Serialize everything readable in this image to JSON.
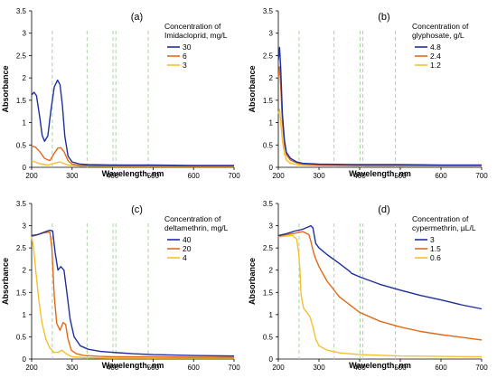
{
  "chart_data": [
    {
      "type": "line",
      "panel_label": "(a)",
      "xlabel": "Wavelength, nm",
      "ylabel": "Absorbance",
      "xlim": [
        200,
        700
      ],
      "ylim": [
        0,
        3.5
      ],
      "xticks": [
        200,
        300,
        400,
        500,
        600,
        700
      ],
      "yticks": [
        0,
        0.5,
        1,
        1.5,
        2,
        2.5,
        3,
        3.5
      ],
      "grid": false,
      "legend": {
        "title_lines": [
          "Concentration of",
          "Imidacloprid, mg/L"
        ],
        "placement": "top-right"
      },
      "reference_lines_x": [
        251,
        337,
        401,
        408,
        488
      ],
      "reference_line_color": "#a8d5a0",
      "series": [
        {
          "name": "30",
          "color": "#1f2f9e",
          "x": [
            200,
            206,
            212,
            220,
            226,
            232,
            240,
            248,
            256,
            264,
            270,
            276,
            282,
            290,
            300,
            320,
            340,
            400,
            500,
            600,
            700
          ],
          "y": [
            1.62,
            1.68,
            1.6,
            1.12,
            0.72,
            0.58,
            0.7,
            1.3,
            1.8,
            1.95,
            1.85,
            1.4,
            0.7,
            0.25,
            0.12,
            0.07,
            0.06,
            0.05,
            0.05,
            0.04,
            0.04
          ]
        },
        {
          "name": "6",
          "color": "#e06a1b",
          "x": [
            200,
            210,
            220,
            232,
            245,
            255,
            265,
            272,
            280,
            290,
            300,
            320,
            400,
            500,
            600,
            700
          ],
          "y": [
            0.48,
            0.45,
            0.35,
            0.2,
            0.15,
            0.3,
            0.43,
            0.44,
            0.35,
            0.15,
            0.07,
            0.04,
            0.03,
            0.03,
            0.03,
            0.03
          ]
        },
        {
          "name": "3",
          "color": "#f2c12e",
          "x": [
            200,
            220,
            240,
            260,
            270,
            290,
            320,
            400,
            500,
            600,
            700
          ],
          "y": [
            0.15,
            0.08,
            0.05,
            0.1,
            0.12,
            0.05,
            0.03,
            0.02,
            0.02,
            0.02,
            0.02
          ]
        }
      ]
    },
    {
      "type": "line",
      "panel_label": "(b)",
      "xlabel": "Wavelength, nm",
      "ylabel": "Absorbance",
      "xlim": [
        200,
        700
      ],
      "ylim": [
        0,
        3.5
      ],
      "xticks": [
        200,
        300,
        400,
        500,
        600,
        700
      ],
      "yticks": [
        0,
        0.5,
        1,
        1.5,
        2,
        2.5,
        3,
        3.5
      ],
      "grid": false,
      "legend": {
        "title_lines": [
          "Concentration of",
          "glyphosate, g/L"
        ],
        "placement": "top-right"
      },
      "reference_lines_x": [
        251,
        337,
        401,
        408,
        488
      ],
      "reference_line_color": "#a8d5a0",
      "series": [
        {
          "name": "4.8",
          "color": "#1f2f9e",
          "x": [
            200,
            203,
            206,
            210,
            215,
            220,
            230,
            245,
            260,
            300,
            400,
            500,
            600,
            700
          ],
          "y": [
            2.4,
            2.68,
            2.2,
            1.2,
            0.6,
            0.33,
            0.2,
            0.12,
            0.09,
            0.07,
            0.06,
            0.06,
            0.05,
            0.05
          ]
        },
        {
          "name": "2.4",
          "color": "#e06a1b",
          "x": [
            200,
            203,
            206,
            210,
            215,
            220,
            230,
            245,
            260,
            300,
            400,
            500,
            600,
            700
          ],
          "y": [
            2.0,
            2.25,
            1.8,
            1.0,
            0.5,
            0.28,
            0.16,
            0.1,
            0.07,
            0.05,
            0.04,
            0.04,
            0.04,
            0.04
          ]
        },
        {
          "name": "1.2",
          "color": "#f2c12e",
          "x": [
            200,
            203,
            206,
            210,
            215,
            220,
            230,
            245,
            260,
            300,
            400,
            500,
            600,
            700
          ],
          "y": [
            1.2,
            1.3,
            1.0,
            0.6,
            0.3,
            0.16,
            0.09,
            0.06,
            0.05,
            0.04,
            0.03,
            0.03,
            0.03,
            0.03
          ]
        }
      ]
    },
    {
      "type": "line",
      "panel_label": "(c)",
      "xlabel": "Wavelength, nm",
      "ylabel": "Absorbance",
      "xlim": [
        200,
        700
      ],
      "ylim": [
        0,
        3.5
      ],
      "xticks": [
        200,
        300,
        400,
        500,
        600,
        700
      ],
      "yticks": [
        0,
        0.5,
        1,
        1.5,
        2,
        2.5,
        3,
        3.5
      ],
      "grid": false,
      "legend": {
        "title_lines": [
          "Concentration of",
          "deltamethrin, mg/L"
        ],
        "placement": "top-right"
      },
      "reference_lines_x": [
        251,
        337,
        401,
        408,
        488
      ],
      "reference_line_color": "#a8d5a0",
      "series": [
        {
          "name": "40",
          "color": "#1f2f9e",
          "x": [
            200,
            215,
            230,
            245,
            252,
            258,
            265,
            272,
            280,
            287,
            295,
            305,
            320,
            340,
            370,
            400,
            450,
            500,
            600,
            700
          ],
          "y": [
            2.78,
            2.8,
            2.85,
            2.9,
            2.88,
            2.4,
            2.0,
            2.08,
            2.0,
            1.5,
            0.9,
            0.5,
            0.3,
            0.22,
            0.17,
            0.15,
            0.12,
            0.1,
            0.08,
            0.07
          ]
        },
        {
          "name": "20",
          "color": "#e06a1b",
          "x": [
            200,
            215,
            230,
            245,
            250,
            256,
            262,
            270,
            278,
            284,
            290,
            298,
            310,
            330,
            370,
            400,
            500,
            600,
            700
          ],
          "y": [
            2.76,
            2.8,
            2.84,
            2.86,
            2.5,
            1.4,
            0.8,
            0.65,
            0.82,
            0.78,
            0.45,
            0.2,
            0.12,
            0.08,
            0.06,
            0.05,
            0.05,
            0.04,
            0.04
          ]
        },
        {
          "name": "4",
          "color": "#f2c12e",
          "x": [
            200,
            205,
            210,
            218,
            226,
            235,
            245,
            255,
            265,
            275,
            285,
            300,
            330,
            400,
            500,
            600,
            700
          ],
          "y": [
            2.75,
            2.5,
            2.0,
            1.3,
            0.8,
            0.45,
            0.25,
            0.15,
            0.15,
            0.2,
            0.12,
            0.05,
            0.03,
            0.02,
            0.02,
            0.02,
            0.02
          ]
        }
      ]
    },
    {
      "type": "line",
      "panel_label": "(d)",
      "xlabel": "Wavelength, nm",
      "ylabel": "Absorbance",
      "xlim": [
        200,
        700
      ],
      "ylim": [
        0,
        3.5
      ],
      "xticks": [
        200,
        300,
        400,
        500,
        600,
        700
      ],
      "yticks": [
        0,
        0.5,
        1,
        1.5,
        2,
        2.5,
        3,
        3.5
      ],
      "grid": false,
      "legend": {
        "title_lines": [
          "Concentration of",
          "cypermethrin, µL/L"
        ],
        "placement": "top-right"
      },
      "reference_lines_x": [
        251,
        337,
        401,
        408,
        488
      ],
      "reference_line_color": "#a8d5a0",
      "series": [
        {
          "name": "3",
          "color": "#1f2f9e",
          "x": [
            200,
            220,
            240,
            260,
            275,
            280,
            285,
            292,
            300,
            320,
            350,
            376,
            380,
            400,
            450,
            500,
            550,
            600,
            650,
            700
          ],
          "y": [
            2.78,
            2.82,
            2.88,
            2.92,
            2.98,
            3.0,
            2.95,
            2.6,
            2.5,
            2.35,
            2.15,
            1.97,
            1.93,
            1.85,
            1.68,
            1.55,
            1.43,
            1.33,
            1.22,
            1.13
          ]
        },
        {
          "name": "1.5",
          "color": "#e06a1b",
          "x": [
            200,
            220,
            240,
            260,
            275,
            280,
            285,
            290,
            300,
            320,
            350,
            400,
            450,
            500,
            550,
            600,
            650,
            700
          ],
          "y": [
            2.77,
            2.8,
            2.83,
            2.87,
            2.8,
            2.65,
            2.45,
            2.3,
            2.08,
            1.75,
            1.4,
            1.05,
            0.85,
            0.72,
            0.62,
            0.55,
            0.49,
            0.43
          ]
        },
        {
          "name": "0.6",
          "color": "#f2c12e",
          "x": [
            200,
            220,
            235,
            245,
            250,
            253,
            256,
            262,
            270,
            278,
            285,
            292,
            300,
            320,
            350,
            400,
            500,
            600,
            700
          ],
          "y": [
            2.75,
            2.77,
            2.78,
            2.7,
            2.4,
            2.0,
            1.45,
            1.15,
            1.05,
            0.95,
            0.72,
            0.45,
            0.3,
            0.2,
            0.14,
            0.1,
            0.07,
            0.06,
            0.05
          ]
        }
      ]
    }
  ]
}
